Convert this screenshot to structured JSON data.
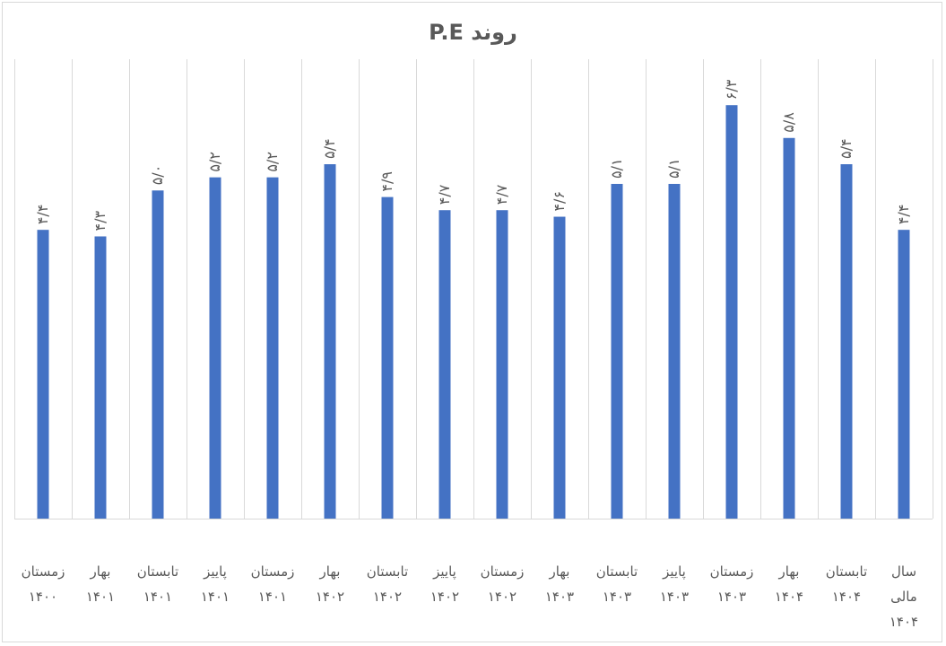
{
  "chart_data": {
    "type": "bar",
    "title": "روند P.E",
    "xlabel": "",
    "ylabel": "",
    "ylim": [
      0,
      7
    ],
    "grid": "vertical",
    "legend": "none",
    "bar_color": "#4472c4",
    "categories": [
      [
        "زمستان",
        "۱۴۰۰"
      ],
      [
        "بهار",
        "۱۴۰۱"
      ],
      [
        "تابستان",
        "۱۴۰۱"
      ],
      [
        "پاییز",
        "۱۴۰۱"
      ],
      [
        "زمستان",
        "۱۴۰۱"
      ],
      [
        "بهار",
        "۱۴۰۲"
      ],
      [
        "تابستان",
        "۱۴۰۲"
      ],
      [
        "پاییز",
        "۱۴۰۲"
      ],
      [
        "زمستان",
        "۱۴۰۲"
      ],
      [
        "بهار",
        "۱۴۰۳"
      ],
      [
        "تابستان",
        "۱۴۰۳"
      ],
      [
        "پاییز",
        "۱۴۰۳"
      ],
      [
        "زمستان",
        "۱۴۰۳"
      ],
      [
        "بهار",
        "۱۴۰۴"
      ],
      [
        "تابستان",
        "۱۴۰۴"
      ],
      [
        "سال",
        "مالی",
        "۱۴۰۴"
      ]
    ],
    "values": [
      4.4,
      4.3,
      5.0,
      5.2,
      5.2,
      5.4,
      4.9,
      4.7,
      4.7,
      4.6,
      5.1,
      5.1,
      6.3,
      5.8,
      5.4,
      4.4
    ],
    "data_labels": [
      "۴/۴",
      "۴/۳",
      "۵/۰",
      "۵/۲",
      "۵/۲",
      "۵/۴",
      "۴/۹",
      "۴/۷",
      "۴/۷",
      "۴/۶",
      "۵/۱",
      "۵/۱",
      "۶/۳",
      "۵/۸",
      "۵/۴",
      "۴/۴"
    ]
  }
}
